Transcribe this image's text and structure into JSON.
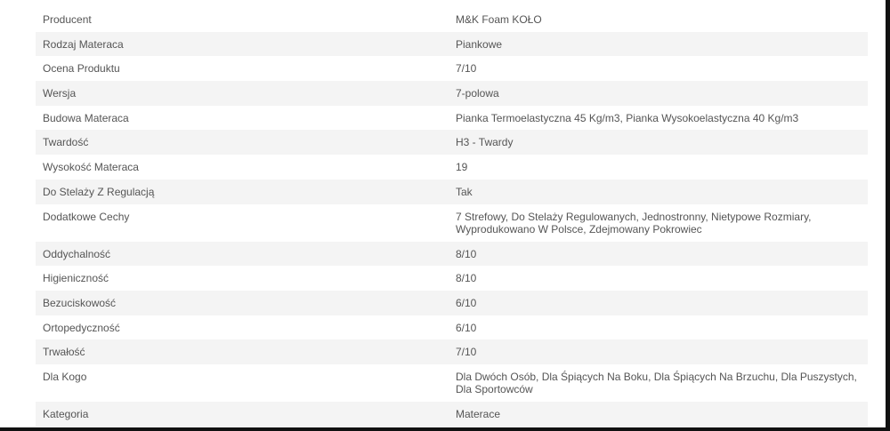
{
  "specs": [
    {
      "label": "Producent",
      "value": "M&K Foam KOŁO"
    },
    {
      "label": "Rodzaj Materaca",
      "value": "Piankowe"
    },
    {
      "label": "Ocena Produktu",
      "value": "7/10"
    },
    {
      "label": "Wersja",
      "value": "7-polowa"
    },
    {
      "label": "Budowa Materaca",
      "value": "Pianka Termoelastyczna 45 Kg/m3, Pianka Wysokoelastyczna 40 Kg/m3"
    },
    {
      "label": "Twardość",
      "value": "H3 - Twardy"
    },
    {
      "label": "Wysokość Materaca",
      "value": "19"
    },
    {
      "label": "Do Stelaży Z Regulacją",
      "value": "Tak"
    },
    {
      "label": "Dodatkowe Cechy",
      "value": "7 Strefowy, Do Stelaży Regulowanych, Jednostronny, Nietypowe Rozmiary, Wyprodukowano W Polsce, Zdejmowany Pokrowiec"
    },
    {
      "label": "Oddychalność",
      "value": "8/10"
    },
    {
      "label": "Higieniczność",
      "value": "8/10"
    },
    {
      "label": "Bezuciskowość",
      "value": "6/10"
    },
    {
      "label": "Ortopedyczność",
      "value": "6/10"
    },
    {
      "label": "Trwałość",
      "value": "7/10"
    },
    {
      "label": "Dla Kogo",
      "value": "Dla Dwóch Osób, Dla Śpiących Na Boku, Dla Śpiących Na Brzuchu, Dla Puszystych, Dla Sportowców"
    },
    {
      "label": "Kategoria",
      "value": "Materace"
    }
  ]
}
